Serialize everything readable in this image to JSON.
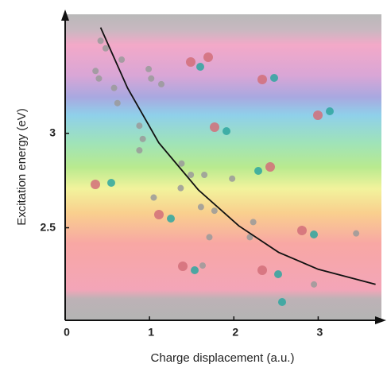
{
  "chart_data": {
    "type": "scatter",
    "x_label": "Charge displacement (a.u.)",
    "y_label": "Excitation energy (eV)",
    "x": [
      0.42,
      0.48,
      0.67,
      0.36,
      0.4,
      0.58,
      0.62,
      0.99,
      1.14,
      1.02,
      0.88,
      0.92,
      0.88,
      1.38,
      1.49,
      1.37,
      1.65,
      1.98,
      1.05,
      1.61,
      1.77,
      2.23,
      2.19,
      1.71,
      1.63,
      2.95,
      3.45
    ],
    "y": [
      3.49,
      3.45,
      3.39,
      3.33,
      3.29,
      3.24,
      3.16,
      3.34,
      3.26,
      3.29,
      3.04,
      2.97,
      2.91,
      2.84,
      2.78,
      2.71,
      2.78,
      2.76,
      2.66,
      2.61,
      2.59,
      2.53,
      2.45,
      2.45,
      2.3,
      2.2,
      2.47
    ],
    "color": "#9a9a9a",
    "fit": {
      "x": [
        0.42,
        0.74,
        1.11,
        1.58,
        2.06,
        2.53,
        3.0,
        3.68
      ],
      "y": [
        3.56,
        3.24,
        2.95,
        2.7,
        2.51,
        2.37,
        2.28,
        2.2
      ],
      "color": "#111111"
    },
    "xlim": [
      0,
      3.75
    ],
    "ylim": [
      2.01,
      3.63
    ],
    "xticks": [
      0,
      1,
      2,
      3
    ],
    "yticks": [
      2.5,
      3
    ]
  }
}
